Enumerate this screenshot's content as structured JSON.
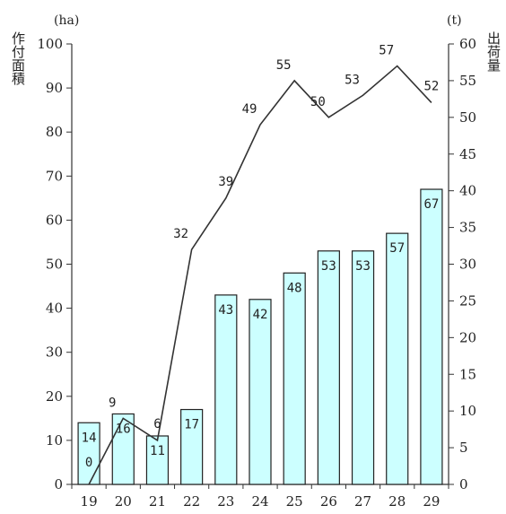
{
  "chart_data": {
    "type": "bar",
    "categories": [
      "19",
      "20",
      "21",
      "22",
      "23",
      "24",
      "25",
      "26",
      "27",
      "28",
      "29"
    ],
    "series": [
      {
        "name": "作付面積",
        "type": "bar",
        "axis": "left",
        "values": [
          14,
          16,
          11,
          17,
          43,
          42,
          48,
          53,
          53,
          57,
          67
        ],
        "color": "#ccffff"
      },
      {
        "name": "出荷量",
        "type": "line",
        "axis": "right",
        "values": [
          0,
          9,
          6,
          32,
          39,
          49,
          55,
          50,
          53,
          57,
          52
        ],
        "color": "#333333"
      }
    ],
    "left_axis": {
      "label": "作付面積",
      "unit": "(ha)",
      "ylim": [
        0,
        100
      ],
      "ticks": [
        0,
        10,
        20,
        30,
        40,
        50,
        60,
        70,
        80,
        90,
        100
      ]
    },
    "right_axis": {
      "label": "出荷量",
      "unit": "(t)",
      "ylim": [
        0,
        60
      ],
      "ticks": [
        0,
        5,
        10,
        15,
        20,
        25,
        30,
        35,
        40,
        45,
        50,
        55,
        60
      ]
    },
    "grid": false,
    "legend": "none"
  }
}
